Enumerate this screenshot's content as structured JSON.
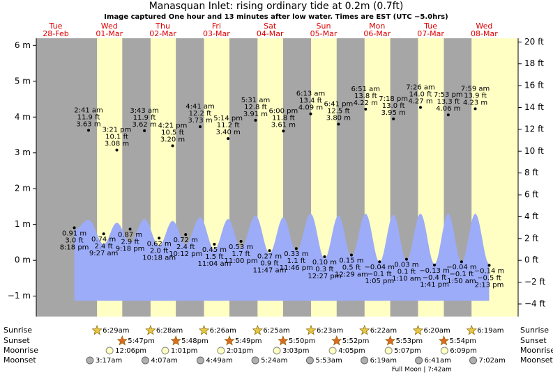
{
  "chart_data": {
    "type": "tide",
    "title": "Manasquan Inlet: rising  ordinary tide at 0.2m (0.7ft)",
    "subtitle": "Image captured One hour and 13 minutes after low water. Times are EST (UTC −5.0hrs)",
    "ylim": [
      -1.57,
      6.2
    ],
    "yticks": [
      {
        "value": -1,
        "label": "−1 m"
      },
      {
        "value": 0,
        "label": "0 m"
      },
      {
        "value": 1,
        "label": "1 m"
      },
      {
        "value": 2,
        "label": "2 m"
      },
      {
        "value": 3,
        "label": "3 m"
      },
      {
        "value": 4,
        "label": "4 m"
      },
      {
        "value": 5,
        "label": "5 m"
      },
      {
        "value": 6,
        "label": "6 m"
      }
    ],
    "y2lim": [
      -5.15,
      20.34
    ],
    "y2ticks": [
      {
        "value": -4,
        "label": "−4 ft"
      },
      {
        "value": -2,
        "label": "−2 ft"
      },
      {
        "value": 0,
        "label": "0 ft"
      },
      {
        "value": 2,
        "label": "2 ft"
      },
      {
        "value": 4,
        "label": "4 ft"
      },
      {
        "value": 6,
        "label": "6 ft"
      },
      {
        "value": 8,
        "label": "8 ft"
      },
      {
        "value": 10,
        "label": "10 ft"
      },
      {
        "value": 12,
        "label": "12 ft"
      },
      {
        "value": 14,
        "label": "14 ft"
      },
      {
        "value": 16,
        "label": "16 ft"
      },
      {
        "value": 18,
        "label": "18 ft"
      },
      {
        "value": 20,
        "label": "20 ft"
      }
    ],
    "area_floor": -1.13,
    "row_labels": [
      "Sunrise",
      "Sunset",
      "Moonrise",
      "Moonset"
    ],
    "days": [
      {
        "weekday": "Tue",
        "date": "28-Feb",
        "tides": [
          {
            "time": "8:18 pm",
            "value": 0.91,
            "label": "0.91 m",
            "ft": "3.0 ft",
            "area": 0.85
          }
        ]
      },
      {
        "weekday": "Wed",
        "date": "01-Mar",
        "sunrise": "6:29am",
        "sunset": "5:47pm",
        "moonrise": "12:06pm",
        "moonset": "3:17am",
        "tides": [
          {
            "time": "2:41 am",
            "value": 3.63,
            "label": "3.63 m",
            "ft": "11.9 ft",
            "area": 1.13
          },
          {
            "time": "9:27 am",
            "value": 0.74,
            "label": "0.74 m",
            "ft": "2.4 ft",
            "area": 0.45
          },
          {
            "time": "3:21 pm",
            "value": 3.08,
            "label": "3.08 m",
            "ft": "10.1 ft",
            "area": 1.05
          },
          {
            "time": "9:18 pm",
            "value": 0.87,
            "label": "0.87 m",
            "ft": "2.9 ft",
            "area": 0.5
          }
        ]
      },
      {
        "weekday": "Thu",
        "date": "02-Mar",
        "sunrise": "6:28am",
        "sunset": "5:48pm",
        "moonrise": "1:01pm",
        "moonset": "4:07am",
        "tides": [
          {
            "time": "3:43 am",
            "value": 3.62,
            "label": "3.62 m",
            "ft": "11.9 ft",
            "area": 1.15
          },
          {
            "time": "10:18 am",
            "value": 0.62,
            "label": "0.62 m",
            "ft": "2.0 ft",
            "area": 0.4
          },
          {
            "time": "4:21 pm",
            "value": 3.2,
            "label": "3.20 m",
            "ft": "10.5 ft",
            "area": 1.1
          },
          {
            "time": "10:12 pm",
            "value": 0.72,
            "label": "0.72 m",
            "ft": "2.4 ft",
            "area": 0.45
          }
        ]
      },
      {
        "weekday": "Fri",
        "date": "03-Mar",
        "sunrise": "6:26am",
        "sunset": "5:49pm",
        "moonrise": "2:01pm",
        "moonset": "4:49am",
        "tides": [
          {
            "time": "4:41 am",
            "value": 3.73,
            "label": "3.73 m",
            "ft": "12.2 ft",
            "area": 1.2
          },
          {
            "time": "11:04 am",
            "value": 0.45,
            "label": "0.45 m",
            "ft": "1.5 ft",
            "area": 0.3
          },
          {
            "time": "5:14 pm",
            "value": 3.4,
            "label": "3.40 m",
            "ft": "11.2 ft",
            "area": 1.15
          },
          {
            "time": "11:00 pm",
            "value": 0.53,
            "label": "0.53 m",
            "ft": "1.7 ft",
            "area": 0.35
          }
        ]
      },
      {
        "weekday": "Sat",
        "date": "04-Mar",
        "sunrise": "6:25am",
        "sunset": "5:50pm",
        "moonrise": "3:03pm",
        "moonset": "5:24am",
        "tides": [
          {
            "time": "5:31 am",
            "value": 3.91,
            "label": "3.91 m",
            "ft": "12.8 ft",
            "area": 1.25
          },
          {
            "time": "11:47 am",
            "value": 0.27,
            "label": "0.27 m",
            "ft": "0.9 ft",
            "area": 0.2
          },
          {
            "time": "6:00 pm",
            "value": 3.61,
            "label": "3.61 m",
            "ft": "11.8 ft",
            "area": 1.2
          },
          {
            "time": "11:46 pm",
            "value": 0.33,
            "label": "0.33 m",
            "ft": "1.1 ft",
            "area": 0.25
          }
        ]
      },
      {
        "weekday": "Sun",
        "date": "05-Mar",
        "sunrise": "6:23am",
        "sunset": "5:52pm",
        "moonrise": "4:05pm",
        "moonset": "5:53am",
        "tides": [
          {
            "time": "6:13 am",
            "value": 4.09,
            "label": "4.09 m",
            "ft": "13.4 ft",
            "area": 1.3
          },
          {
            "time": "12:27 pm",
            "value": 0.1,
            "label": "0.10 m",
            "ft": "0.3 ft",
            "area": 0.05
          },
          {
            "time": "6:41 pm",
            "value": 3.8,
            "label": "3.80 m",
            "ft": "12.5 ft",
            "area": 1.25
          }
        ]
      },
      {
        "weekday": "Mon",
        "date": "06-Mar",
        "sunrise": "6:22am",
        "sunset": "5:53pm",
        "moonrise": "5:07pm",
        "moonset": "6:19am",
        "tides": [
          {
            "time": "12:29 am",
            "value": 0.15,
            "label": "0.15 m",
            "ft": "0.5 ft",
            "area": 0.1
          },
          {
            "time": "6:51 am",
            "value": 4.22,
            "label": "4.22 m",
            "ft": "13.8 ft",
            "area": 1.3
          },
          {
            "time": "1:05 pm",
            "value": -0.04,
            "label": "−0.04 m",
            "ft": "−0.1 ft",
            "area": -0.05
          },
          {
            "time": "7:18 pm",
            "value": 3.95,
            "label": "3.95 m",
            "ft": "13.0 ft",
            "area": 1.27
          }
        ]
      },
      {
        "weekday": "Tue",
        "date": "07-Mar",
        "sunrise": "6:20am",
        "sunset": "5:54pm",
        "moonrise": "6:09pm",
        "moonset": "6:41am",
        "moon_phase": "Full Moon | 7:42am",
        "tides": [
          {
            "time": "1:10 am",
            "value": 0.03,
            "label": "0.03 m",
            "ft": "0.1 ft",
            "area": 0.0
          },
          {
            "time": "7:26 am",
            "value": 4.27,
            "label": "4.27 m",
            "ft": "14.0 ft",
            "area": 1.3
          },
          {
            "time": "1:41 pm",
            "value": -0.13,
            "label": "−0.13 m",
            "ft": "−0.4 ft",
            "area": -0.1
          },
          {
            "time": "7:53 pm",
            "value": 4.06,
            "label": "4.06 m",
            "ft": "13.3 ft",
            "area": 1.3
          }
        ]
      },
      {
        "weekday": "Wed",
        "date": "08-Mar",
        "sunrise": "6:19am",
        "moonset": "7:02am",
        "tides": [
          {
            "time": "1:50 am",
            "value": -0.04,
            "label": "−0.04 m",
            "ft": "−0.1 ft",
            "area": -0.05
          },
          {
            "time": "7:59 am",
            "value": 4.23,
            "label": "4.23 m",
            "ft": "13.9 ft",
            "area": 1.3
          },
          {
            "time": "2:13 pm",
            "value": -0.14,
            "label": "−0.14 m",
            "ft": "−0.5 ft",
            "area": -0.1
          }
        ]
      }
    ]
  }
}
